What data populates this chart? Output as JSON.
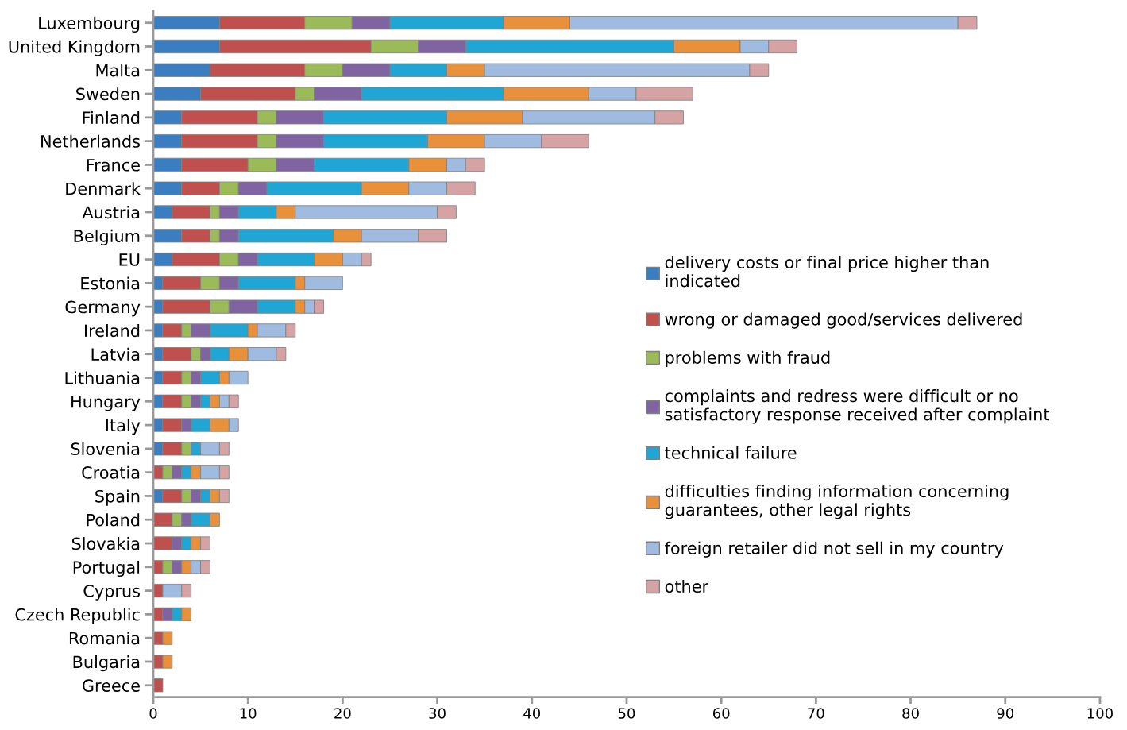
{
  "chart_data": {
    "type": "bar",
    "orientation": "horizontal",
    "stacked": true,
    "categories": [
      "Luxembourg",
      "United Kingdom",
      "Malta",
      "Sweden",
      "Finland",
      "Netherlands",
      "France",
      "Denmark",
      "Austria",
      "Belgium",
      "EU",
      "Estonia",
      "Germany",
      "Ireland",
      "Latvia",
      "Lithuania",
      "Hungary",
      "Italy",
      "Slovenia",
      "Croatia",
      "Spain",
      "Poland",
      "Slovakia",
      "Portugal",
      "Cyprus",
      "Czech Republic",
      "Romania",
      "Bulgaria",
      "Greece"
    ],
    "series": [
      {
        "name": "delivery costs or final price higher than\nindicated",
        "color": "#3a7dc0",
        "values": [
          7,
          7,
          6,
          5,
          3,
          3,
          3,
          3,
          2,
          3,
          2,
          1,
          1,
          1,
          1,
          1,
          1,
          1,
          1,
          0,
          1,
          0,
          0,
          0,
          0,
          0,
          0,
          0,
          0
        ]
      },
      {
        "name": "wrong or damaged good/services delivered",
        "color": "#c0504d",
        "values": [
          9,
          16,
          10,
          10,
          8,
          8,
          7,
          4,
          4,
          3,
          5,
          4,
          5,
          2,
          3,
          2,
          2,
          2,
          2,
          1,
          2,
          2,
          2,
          1,
          1,
          1,
          1,
          1,
          1
        ]
      },
      {
        "name": "problems with fraud",
        "color": "#9bbb59",
        "values": [
          5,
          5,
          4,
          2,
          2,
          2,
          3,
          2,
          1,
          1,
          2,
          2,
          2,
          1,
          1,
          1,
          1,
          0,
          1,
          1,
          1,
          1,
          0,
          1,
          0,
          0,
          0,
          0,
          0
        ]
      },
      {
        "name": "complaints and redress were difficult or no\nsatisfactory response received after complaint",
        "color": "#8064a2",
        "values": [
          4,
          5,
          5,
          5,
          5,
          5,
          4,
          3,
          2,
          2,
          2,
          2,
          3,
          2,
          1,
          1,
          1,
          1,
          0,
          1,
          1,
          1,
          1,
          1,
          0,
          1,
          0,
          0,
          0
        ]
      },
      {
        "name": "technical failure",
        "color": "#1fa6d4",
        "values": [
          12,
          22,
          6,
          15,
          13,
          11,
          10,
          10,
          4,
          10,
          6,
          6,
          4,
          4,
          2,
          2,
          1,
          2,
          1,
          1,
          1,
          2,
          1,
          0,
          0,
          1,
          0,
          0,
          0
        ]
      },
      {
        "name": "difficulties finding information concerning\nguarantees, other legal rights",
        "color": "#e9913a",
        "values": [
          7,
          7,
          4,
          9,
          8,
          6,
          4,
          5,
          2,
          3,
          3,
          1,
          1,
          1,
          2,
          1,
          1,
          2,
          0,
          1,
          1,
          1,
          1,
          1,
          0,
          1,
          1,
          1,
          0
        ]
      },
      {
        "name": "foreign retailer did not sell in my country",
        "color": "#9fbbe0",
        "values": [
          41,
          3,
          28,
          5,
          14,
          6,
          2,
          4,
          15,
          6,
          2,
          4,
          1,
          3,
          3,
          2,
          1,
          1,
          2,
          2,
          0,
          0,
          0,
          1,
          2,
          0,
          0,
          0,
          0
        ]
      },
      {
        "name": "other",
        "color": "#d5a3a3",
        "values": [
          2,
          3,
          2,
          6,
          3,
          5,
          2,
          3,
          2,
          3,
          1,
          0,
          1,
          1,
          1,
          0,
          1,
          0,
          1,
          1,
          1,
          0,
          1,
          1,
          1,
          0,
          0,
          0,
          0
        ]
      }
    ],
    "xlim": [
      0,
      100
    ],
    "xticks": [
      0,
      10,
      20,
      30,
      40,
      50,
      60,
      70,
      80,
      90,
      100
    ],
    "grid": false,
    "legend": "right"
  }
}
